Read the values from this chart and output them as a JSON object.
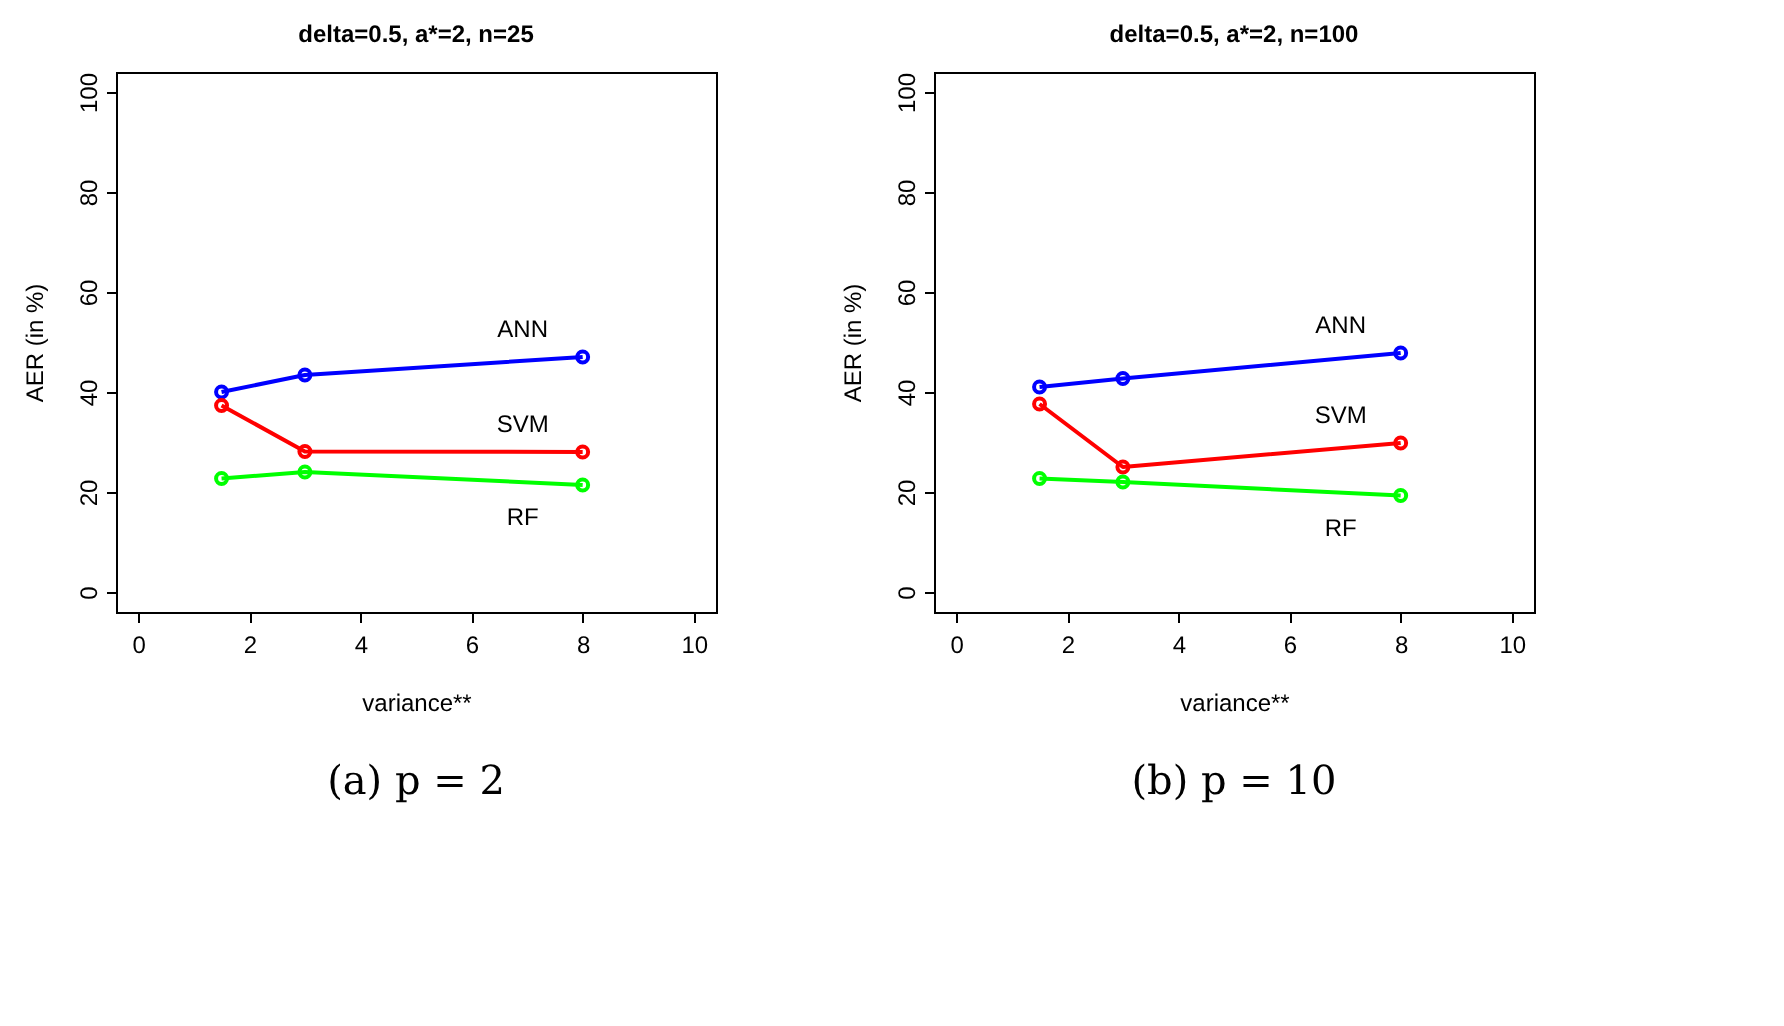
{
  "chart_data": [
    {
      "type": "line",
      "title": "delta=0.5, a*=2, n=25",
      "xlabel": "variance**",
      "ylabel": "AER (in %)",
      "x": [
        1.5,
        3,
        8
      ],
      "series": [
        {
          "name": "ANN",
          "color": "#0000ff",
          "values": [
            40,
            43.4,
            47
          ]
        },
        {
          "name": "SVM",
          "color": "#ff0000",
          "values": [
            37.3,
            28.1,
            28
          ]
        },
        {
          "name": "RF",
          "color": "#00ff00",
          "values": [
            22.7,
            24,
            21.4
          ]
        }
      ],
      "xlim": [
        -0.4,
        10.4
      ],
      "xticks": [
        0,
        2,
        4,
        6,
        8,
        10
      ],
      "ylim": [
        -4,
        104
      ],
      "yticks": [
        0,
        20,
        40,
        60,
        80,
        100
      ],
      "grid": false,
      "marker": "circle",
      "line_style": "solid",
      "annotations": [
        "(a) p = 2"
      ]
    },
    {
      "type": "line",
      "title": "delta=0.5, a*=2, n=100",
      "xlabel": "variance**",
      "ylabel": "AER (in %)",
      "x": [
        1.5,
        3,
        8
      ],
      "series": [
        {
          "name": "ANN",
          "color": "#0000ff",
          "values": [
            41,
            42.7,
            47.8
          ]
        },
        {
          "name": "SVM",
          "color": "#ff0000",
          "values": [
            37.6,
            25,
            29.8
          ]
        },
        {
          "name": "RF",
          "color": "#00ff00",
          "values": [
            22.7,
            22,
            19.3
          ]
        }
      ],
      "xlim": [
        -0.4,
        10.4
      ],
      "xticks": [
        0,
        2,
        4,
        6,
        8,
        10
      ],
      "ylim": [
        -4,
        104
      ],
      "yticks": [
        0,
        20,
        40,
        60,
        80,
        100
      ],
      "grid": false,
      "marker": "circle",
      "line_style": "solid",
      "annotations": [
        "(b) p = 10"
      ]
    }
  ]
}
